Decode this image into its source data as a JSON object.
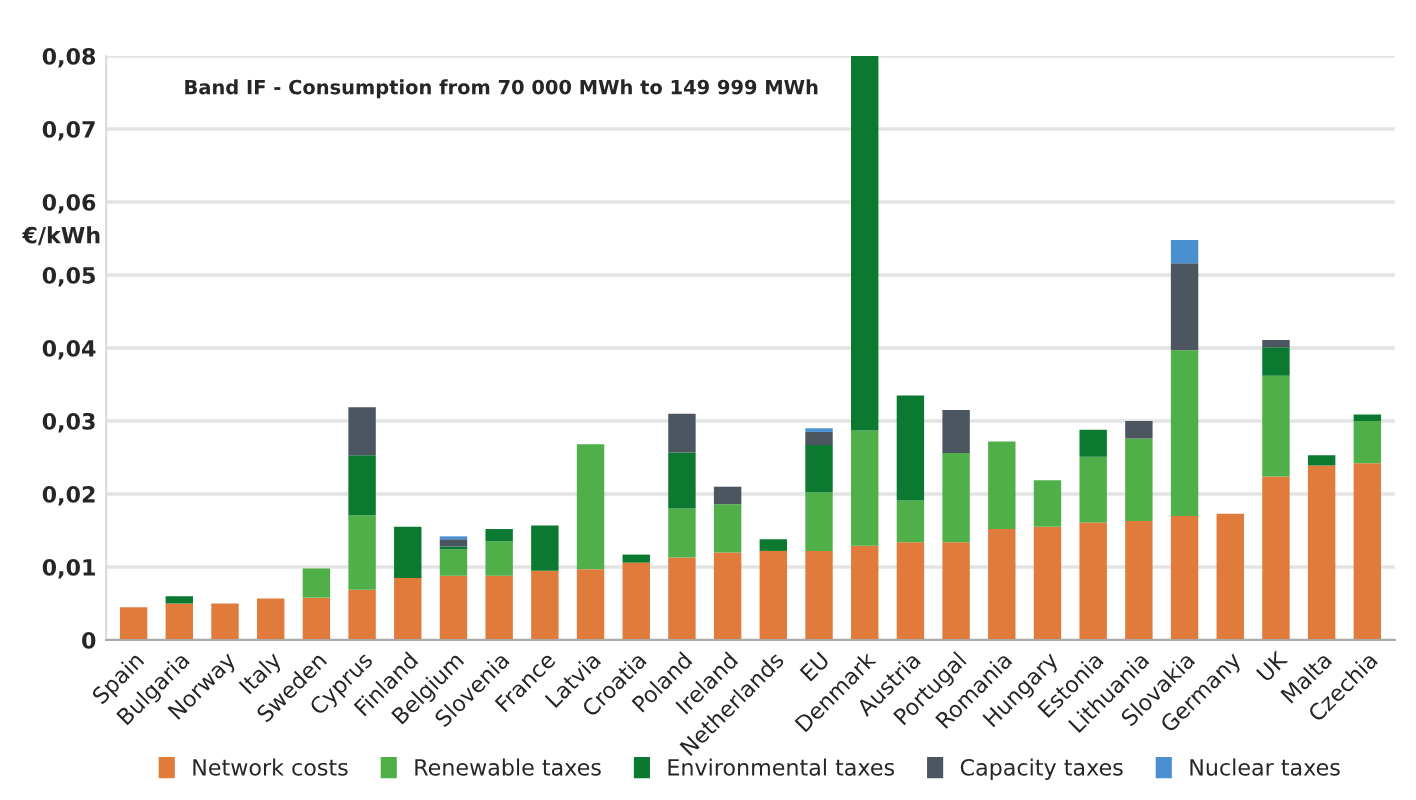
{
  "chart_data": {
    "type": "bar",
    "stacked": true,
    "title": "Band IF - Consumption from 70 000 MWh to 149 999 MWh",
    "ylabel": "€/kWh",
    "categories": [
      "Spain",
      "Bulgaria",
      "Norway",
      "Italy",
      "Sweden",
      "Cyprus",
      "Finland",
      "Belgium",
      "Slovenia",
      "France",
      "Latvia",
      "Croatia",
      "Poland",
      "Ireland",
      "Netherlands",
      "EU",
      "Denmark",
      "Austria",
      "Portugal",
      "Romania",
      "Hungary",
      "Estonia",
      "Lithuania",
      "Slovakia",
      "Germany",
      "UK",
      "Malta",
      "Czechia"
    ],
    "series": [
      {
        "name": "Network costs",
        "color": "#e07b3c",
        "values": [
          0.0045,
          0.005,
          0.005,
          0.0057,
          0.0058,
          0.0069,
          0.0085,
          0.0088,
          0.0088,
          0.0095,
          0.0097,
          0.0106,
          0.0113,
          0.012,
          0.0122,
          0.0122,
          0.0129,
          0.0134,
          0.0134,
          0.0152,
          0.0155,
          0.0161,
          0.0163,
          0.017,
          0.0173,
          0.0224,
          0.0239,
          0.0242
        ]
      },
      {
        "name": "Renewable taxes",
        "color": "#4fb04a",
        "values": [
          0,
          0,
          0,
          0,
          0.004,
          0.0102,
          0,
          0.0036,
          0.0047,
          0,
          0.0171,
          0,
          0.0067,
          0.0066,
          0,
          0.008,
          0.0158,
          0.0057,
          0.0122,
          0.012,
          0.0064,
          0.009,
          0.0113,
          0.0227,
          0,
          0.0138,
          0,
          0.0058
        ]
      },
      {
        "name": "Environmental taxes",
        "color": "#0b7a30",
        "values": [
          0,
          0.001,
          0,
          0,
          0,
          0.0082,
          0.007,
          0.0004,
          0.0017,
          0.0062,
          0,
          0.0011,
          0.0077,
          0,
          0.0016,
          0.0065,
          0.0513,
          0.0144,
          0,
          0,
          0,
          0.0037,
          0,
          0,
          0,
          0.0039,
          0.0014,
          0.0009
        ]
      },
      {
        "name": "Capacity taxes",
        "color": "#4b5661",
        "values": [
          0,
          0,
          0,
          0,
          0,
          0.0066,
          0,
          0.001,
          0,
          0,
          0,
          0,
          0.0053,
          0.0024,
          0,
          0.0018,
          0,
          0,
          0.0059,
          0,
          0,
          0,
          0.0024,
          0.0119,
          0,
          0.001,
          0,
          0
        ]
      },
      {
        "name": "Nuclear taxes",
        "color": "#4a90d0",
        "values": [
          0,
          0,
          0,
          0,
          0,
          0,
          0,
          0.0004,
          0,
          0,
          0,
          0,
          0,
          0,
          0,
          0.0005,
          0,
          0,
          0,
          0,
          0,
          0,
          0,
          0.0032,
          0,
          0,
          0,
          0
        ]
      }
    ],
    "ylim": [
      0,
      0.08
    ],
    "yticks": [
      0,
      {
        "value": 0.01,
        "label": "0,01"
      },
      {
        "value": 0.02,
        "label": "0,02"
      },
      {
        "value": 0.03,
        "label": "0,03"
      },
      {
        "value": 0.04,
        "label": "0,04"
      },
      {
        "value": 0.05,
        "label": "0,05"
      },
      {
        "value": 0.06,
        "label": "0,06"
      },
      {
        "value": 0.07,
        "label": "0,07"
      },
      {
        "value": 0.08,
        "label": "0,08"
      }
    ],
    "grid": "y",
    "legend": "bottom"
  }
}
